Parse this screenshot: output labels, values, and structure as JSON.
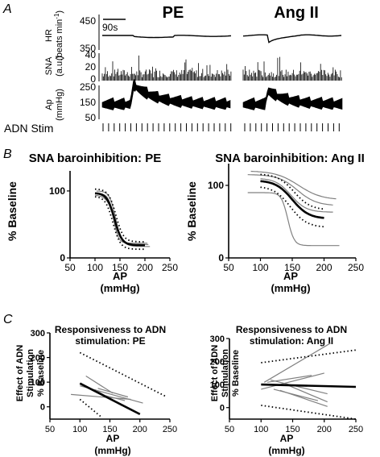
{
  "panels": {
    "A": {
      "label": "A",
      "col_titles": [
        "PE",
        "Ang II"
      ],
      "scale_bar": "90s",
      "stim_label": "ADN Stim",
      "rows": [
        {
          "ylabel_lines": [
            "HR",
            "(beats min",
            "-1",
            ")"
          ],
          "ticks": [
            "450",
            "350"
          ]
        },
        {
          "ylabel_lines": [
            "SNA",
            "(a.u.)"
          ],
          "ticks": [
            "40",
            "20",
            "0"
          ]
        },
        {
          "ylabel_lines": [
            "Ap",
            "(mmHg)"
          ],
          "ticks": [
            "250",
            "150",
            "50"
          ]
        }
      ]
    },
    "B": {
      "label": "B"
    },
    "C": {
      "label": "C"
    }
  },
  "chart_data": [
    {
      "type": "line",
      "title": "SNA baroinhibition: PE",
      "xlabel": [
        "AP",
        "(mmHg)"
      ],
      "ylabel": "% Baseline",
      "xticks": [
        50,
        100,
        150,
        200,
        250
      ],
      "yticks": [
        0,
        100
      ],
      "xlim": [
        50,
        250
      ],
      "ylim": [
        0,
        130
      ],
      "series": [
        {
          "style": "mean",
          "params": {
            "top": 97,
            "bottom": 19,
            "mid": 139,
            "k": 7.5
          },
          "xrange": [
            100,
            200
          ]
        },
        {
          "style": "ci",
          "params": {
            "top": 103,
            "bottom": 24,
            "mid": 142,
            "k": 7.5
          },
          "xrange": [
            100,
            200
          ]
        },
        {
          "style": "ci",
          "params": {
            "top": 92,
            "bottom": 13,
            "mid": 136,
            "k": 7.5
          },
          "xrange": [
            100,
            200
          ]
        },
        {
          "style": "individual",
          "params": {
            "top": 100,
            "bottom": 20,
            "mid": 141,
            "k": 6
          },
          "xrange": [
            103,
            208
          ]
        },
        {
          "style": "individual",
          "params": {
            "top": 96,
            "bottom": 22,
            "mid": 137,
            "k": 5
          },
          "xrange": [
            107,
            205
          ]
        },
        {
          "style": "individual",
          "params": {
            "top": 94,
            "bottom": 17,
            "mid": 140,
            "k": 8
          },
          "xrange": [
            100,
            210
          ]
        }
      ]
    },
    {
      "type": "line",
      "title": "SNA baroinhibition: Ang  II",
      "xlabel": [
        "AP",
        "(mmHg)"
      ],
      "ylabel": "% Baseline",
      "xticks": [
        50,
        100,
        150,
        200,
        250
      ],
      "yticks": [
        0,
        100
      ],
      "xlim": [
        50,
        250
      ],
      "ylim": [
        0,
        130
      ],
      "series": [
        {
          "style": "mean",
          "params": {
            "top": 107,
            "bottom": 54,
            "mid": 150,
            "k": 13
          },
          "xrange": [
            100,
            200
          ]
        },
        {
          "style": "ci",
          "params": {
            "top": 116,
            "bottom": 66,
            "mid": 153,
            "k": 13
          },
          "xrange": [
            100,
            200
          ]
        },
        {
          "style": "ci",
          "params": {
            "top": 99,
            "bottom": 42,
            "mid": 147,
            "k": 13
          },
          "xrange": [
            100,
            200
          ]
        },
        {
          "style": "individual",
          "params": {
            "top": 115,
            "bottom": 72,
            "mid": 158,
            "k": 15
          },
          "xrange": [
            80,
            215
          ]
        },
        {
          "style": "individual",
          "params": {
            "top": 90,
            "bottom": 17,
            "mid": 143,
            "k": 5
          },
          "xrange": [
            80,
            225
          ]
        },
        {
          "style": "individual",
          "params": {
            "top": 110,
            "bottom": 63,
            "mid": 148,
            "k": 12
          },
          "xrange": [
            100,
            215
          ]
        },
        {
          "style": "individual",
          "params": {
            "top": 120,
            "bottom": 80,
            "mid": 160,
            "k": 18
          },
          "xrange": [
            85,
            220
          ]
        }
      ]
    },
    {
      "type": "line",
      "title": [
        "Responsiveness to ADN",
        "stimulation: PE"
      ],
      "xlabel": [
        "AP",
        "(mmHg)"
      ],
      "ylabel": [
        "Effect of ADN",
        "Stimulation",
        "% Baseline"
      ],
      "xticks": [
        50,
        100,
        150,
        200,
        250
      ],
      "yticks": [
        0,
        100,
        200,
        300
      ],
      "xlim": [
        50,
        250
      ],
      "ylim": [
        -50,
        300
      ],
      "series": [
        {
          "style": "mean",
          "points": [
            [
              100,
              95
            ],
            [
              200,
              -30
            ]
          ]
        },
        {
          "style": "ci",
          "points": [
            [
              100,
              220
            ],
            [
              245,
              40
            ]
          ]
        },
        {
          "style": "ci",
          "points": [
            [
              100,
              30
            ],
            [
              135,
              -40
            ]
          ]
        },
        {
          "style": "individual",
          "points": [
            [
              85,
              50
            ],
            [
              185,
              30
            ]
          ]
        },
        {
          "style": "individual",
          "points": [
            [
              100,
              85
            ],
            [
              205,
              15
            ]
          ]
        },
        {
          "style": "individual",
          "points": [
            [
              110,
              125
            ],
            [
              155,
              55
            ]
          ]
        },
        {
          "style": "individual",
          "points": [
            [
              125,
              70
            ],
            [
              170,
              5
            ]
          ]
        },
        {
          "style": "individual",
          "points": [
            [
              130,
              75
            ],
            [
              180,
              40
            ]
          ]
        },
        {
          "style": "individual",
          "points": [
            [
              135,
              50
            ],
            [
              175,
              25
            ]
          ]
        }
      ]
    },
    {
      "type": "line",
      "title": [
        "Responsiveness to ADN",
        "stimulation: Ang II"
      ],
      "xlabel": [
        "AP",
        "(mmHg)"
      ],
      "ylabel": [
        "Effect of ADN",
        "Stimulation",
        "% Baseline"
      ],
      "xticks": [
        50,
        100,
        150,
        200,
        250
      ],
      "yticks": [
        0,
        100,
        200,
        300
      ],
      "xlim": [
        50,
        250
      ],
      "ylim": [
        -50,
        300
      ],
      "series": [
        {
          "style": "mean",
          "points": [
            [
              100,
              100
            ],
            [
              250,
              90
            ]
          ]
        },
        {
          "style": "ci",
          "points": [
            [
              100,
              195
            ],
            [
              250,
              250
            ]
          ]
        },
        {
          "style": "ci",
          "points": [
            [
              100,
              10
            ],
            [
              250,
              -75
            ]
          ]
        },
        {
          "style": "individual",
          "points": [
            [
              105,
              110
            ],
            [
              210,
              280
            ]
          ]
        },
        {
          "style": "individual",
          "points": [
            [
              100,
              80
            ],
            [
              200,
              150
            ]
          ]
        },
        {
          "style": "individual",
          "points": [
            [
              110,
              110
            ],
            [
              180,
              140
            ]
          ]
        },
        {
          "style": "individual",
          "points": [
            [
              115,
              120
            ],
            [
              205,
              60
            ]
          ]
        },
        {
          "style": "individual",
          "points": [
            [
              120,
              80
            ],
            [
              190,
              30
            ]
          ]
        },
        {
          "style": "individual",
          "points": [
            [
              130,
              75
            ],
            [
              205,
              5
            ]
          ]
        },
        {
          "style": "individual",
          "points": [
            [
              140,
              100
            ],
            [
              205,
              25
            ]
          ]
        }
      ]
    }
  ]
}
